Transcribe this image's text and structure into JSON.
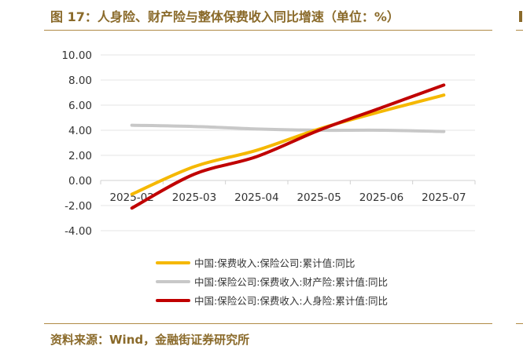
{
  "title": "图 17：人身险、财产险与整体保费收入同比增速（单位：%）",
  "source": "资料来源：Wind，金融街证券研究所",
  "chart_data": {
    "type": "line",
    "categories": [
      "2025-02",
      "2025-03",
      "2025-04",
      "2025-05",
      "2025-06",
      "2025-07"
    ],
    "ylim": [
      -4,
      10
    ],
    "yticks": [
      "10.00",
      "8.00",
      "6.00",
      "4.00",
      "2.00",
      "0.00",
      "-2.00",
      "-4.00"
    ],
    "grid": true,
    "legend_position": "bottom",
    "series": [
      {
        "name": "中国:保费收入:保险公司:累计值:同比",
        "color": "#f5b800",
        "values": [
          -1.1,
          1.1,
          2.4,
          4.1,
          5.5,
          6.8
        ]
      },
      {
        "name": "中国:保险公司:保费收入:财产险:累计值:同比",
        "color": "#c8c8c8",
        "values": [
          4.4,
          4.3,
          4.1,
          4.0,
          4.0,
          3.9
        ]
      },
      {
        "name": "中国:保险公司:保费收入:人身险:累计值:同比",
        "color": "#c00000",
        "values": [
          -2.2,
          0.5,
          1.9,
          4.0,
          5.8,
          7.6
        ]
      }
    ]
  }
}
